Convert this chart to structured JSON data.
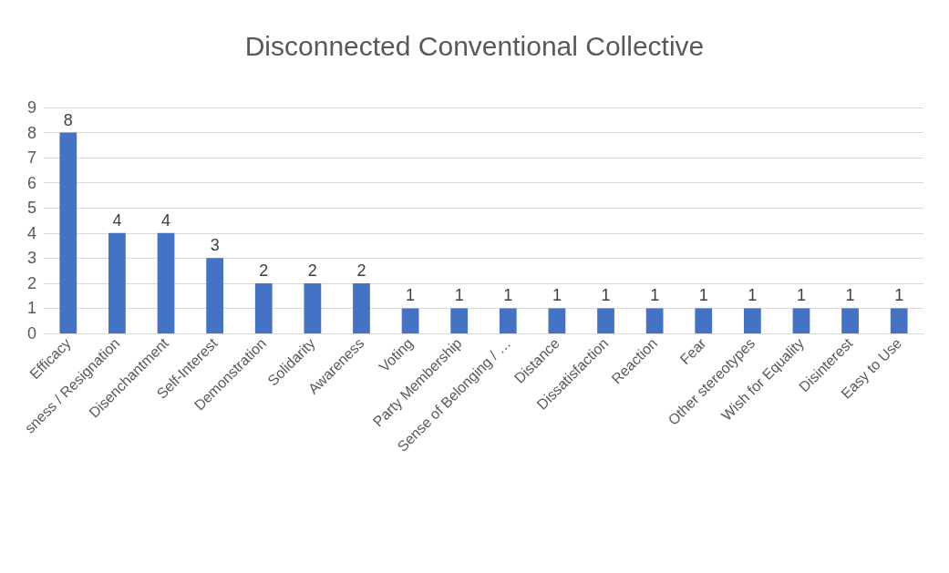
{
  "chart_data": {
    "type": "bar",
    "title": "Disconnected Conventional Collective",
    "categories": [
      "Efficacy",
      "sness / Resignation",
      "Disenchantment",
      "Self-Interest",
      "Demonstration",
      "Solidarity",
      "Awareness",
      "Voting",
      "Party Membership",
      "Sense of Belonging / …",
      "Distance",
      "Dissatisfaction",
      "Reaction",
      "Fear",
      "Other stereotypes",
      "Wish for Equality",
      "Disinterest",
      "Easy to Use"
    ],
    "values": [
      8,
      4,
      4,
      3,
      2,
      2,
      2,
      1,
      1,
      1,
      1,
      1,
      1,
      1,
      1,
      1,
      1,
      1
    ],
    "color": "#4472c4",
    "ylim": [
      0,
      9
    ],
    "yticks": [
      0,
      1,
      2,
      3,
      4,
      5,
      6,
      7,
      8,
      9
    ],
    "grid": "y",
    "data_labels": true
  }
}
